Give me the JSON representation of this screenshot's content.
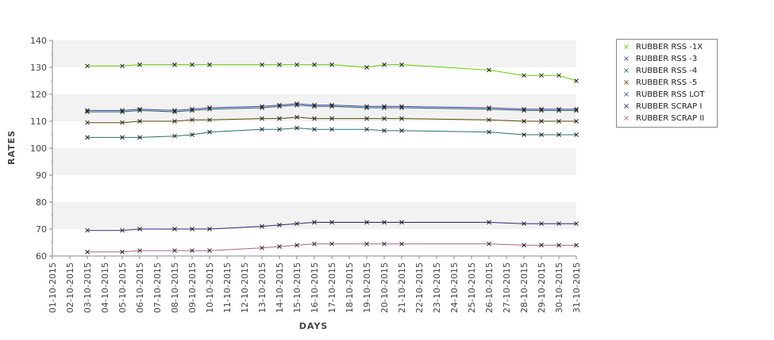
{
  "chart_data": {
    "type": "line",
    "xlabel": "DAYS",
    "ylabel": "RATES",
    "ylim": [
      60,
      140
    ],
    "yticks": [
      60,
      70,
      80,
      90,
      100,
      110,
      120,
      130,
      140
    ],
    "grid": "alternating horizontal bands",
    "legend_position": "right",
    "x": [
      "01-10-2015",
      "02-10-2015",
      "03-10-2015",
      "04-10-2015",
      "05-10-2015",
      "06-10-2015",
      "07-10-2015",
      "08-10-2015",
      "09-10-2015",
      "10-10-2015",
      "11-10-2015",
      "12-10-2015",
      "13-10-2015",
      "14-10-2015",
      "15-10-2015",
      "16-10-2015",
      "17-10-2015",
      "18-10-2015",
      "19-10-2015",
      "20-10-2015",
      "21-10-2015",
      "22-10-2015",
      "23-10-2015",
      "24-10-2015",
      "25-10-2015",
      "26-10-2015",
      "27-10-2015",
      "28-10-2015",
      "29-10-2015",
      "30-10-2015",
      "31-10-2015"
    ],
    "series": [
      {
        "name": "RUBBER RSS -1X",
        "color": "#66cc00",
        "points": [
          [
            "03-10-2015",
            130.5
          ],
          [
            "05-10-2015",
            130.5
          ],
          [
            "06-10-2015",
            131
          ],
          [
            "08-10-2015",
            131
          ],
          [
            "09-10-2015",
            131
          ],
          [
            "10-10-2015",
            131
          ],
          [
            "13-10-2015",
            131
          ],
          [
            "14-10-2015",
            131
          ],
          [
            "15-10-2015",
            131
          ],
          [
            "16-10-2015",
            131
          ],
          [
            "17-10-2015",
            131
          ],
          [
            "19-10-2015",
            130
          ],
          [
            "20-10-2015",
            131
          ],
          [
            "21-10-2015",
            131
          ],
          [
            "26-10-2015",
            129
          ],
          [
            "28-10-2015",
            127
          ],
          [
            "29-10-2015",
            127
          ],
          [
            "30-10-2015",
            127
          ],
          [
            "31-10-2015",
            125
          ]
        ]
      },
      {
        "name": "RUBBER RSS -3",
        "color": "#4444aa",
        "points": [
          [
            "03-10-2015",
            114
          ],
          [
            "05-10-2015",
            114
          ],
          [
            "06-10-2015",
            114.5
          ],
          [
            "08-10-2015",
            114
          ],
          [
            "09-10-2015",
            114.5
          ],
          [
            "10-10-2015",
            115
          ],
          [
            "13-10-2015",
            115.5
          ],
          [
            "14-10-2015",
            116
          ],
          [
            "15-10-2015",
            116.5
          ],
          [
            "16-10-2015",
            116
          ],
          [
            "17-10-2015",
            116
          ],
          [
            "19-10-2015",
            115.5
          ],
          [
            "20-10-2015",
            115.5
          ],
          [
            "21-10-2015",
            115.5
          ],
          [
            "26-10-2015",
            115
          ],
          [
            "28-10-2015",
            114.5
          ],
          [
            "29-10-2015",
            114.5
          ],
          [
            "30-10-2015",
            114.5
          ],
          [
            "31-10-2015",
            114.5
          ]
        ]
      },
      {
        "name": "RUBBER RSS -4",
        "color": "#226666",
        "points": [
          [
            "03-10-2015",
            113.5
          ],
          [
            "05-10-2015",
            113.5
          ],
          [
            "06-10-2015",
            114
          ],
          [
            "08-10-2015",
            113.5
          ],
          [
            "09-10-2015",
            114
          ],
          [
            "10-10-2015",
            114.5
          ],
          [
            "13-10-2015",
            115
          ],
          [
            "14-10-2015",
            115.5
          ],
          [
            "15-10-2015",
            116
          ],
          [
            "16-10-2015",
            115.5
          ],
          [
            "17-10-2015",
            115.5
          ],
          [
            "19-10-2015",
            115
          ],
          [
            "20-10-2015",
            115
          ],
          [
            "21-10-2015",
            115
          ],
          [
            "26-10-2015",
            114.5
          ],
          [
            "28-10-2015",
            114
          ],
          [
            "29-10-2015",
            114
          ],
          [
            "30-10-2015",
            114
          ],
          [
            "31-10-2015",
            114
          ]
        ]
      },
      {
        "name": "RUBBER RSS -5",
        "color": "#664400",
        "points": [
          [
            "03-10-2015",
            109.5
          ],
          [
            "05-10-2015",
            109.5
          ],
          [
            "06-10-2015",
            110
          ],
          [
            "08-10-2015",
            110
          ],
          [
            "09-10-2015",
            110.5
          ],
          [
            "10-10-2015",
            110.5
          ],
          [
            "13-10-2015",
            111
          ],
          [
            "14-10-2015",
            111
          ],
          [
            "15-10-2015",
            111.5
          ],
          [
            "16-10-2015",
            111
          ],
          [
            "17-10-2015",
            111
          ],
          [
            "19-10-2015",
            111
          ],
          [
            "20-10-2015",
            111
          ],
          [
            "21-10-2015",
            111
          ],
          [
            "26-10-2015",
            110.5
          ],
          [
            "28-10-2015",
            110
          ],
          [
            "29-10-2015",
            110
          ],
          [
            "30-10-2015",
            110
          ],
          [
            "31-10-2015",
            110
          ]
        ]
      },
      {
        "name": "RUBBER RSS LOT",
        "color": "#2a6b7a",
        "points": [
          [
            "03-10-2015",
            104
          ],
          [
            "05-10-2015",
            104
          ],
          [
            "06-10-2015",
            104
          ],
          [
            "08-10-2015",
            104.5
          ],
          [
            "09-10-2015",
            105
          ],
          [
            "10-10-2015",
            106
          ],
          [
            "13-10-2015",
            107
          ],
          [
            "14-10-2015",
            107
          ],
          [
            "15-10-2015",
            107.5
          ],
          [
            "16-10-2015",
            107
          ],
          [
            "17-10-2015",
            107
          ],
          [
            "19-10-2015",
            107
          ],
          [
            "20-10-2015",
            106.5
          ],
          [
            "21-10-2015",
            106.5
          ],
          [
            "26-10-2015",
            106
          ],
          [
            "28-10-2015",
            105
          ],
          [
            "29-10-2015",
            105
          ],
          [
            "30-10-2015",
            105
          ],
          [
            "31-10-2015",
            105
          ]
        ]
      },
      {
        "name": "RUBBER SCRAP I",
        "color": "#332277",
        "points": [
          [
            "03-10-2015",
            69.5
          ],
          [
            "05-10-2015",
            69.5
          ],
          [
            "06-10-2015",
            70
          ],
          [
            "08-10-2015",
            70
          ],
          [
            "09-10-2015",
            70
          ],
          [
            "10-10-2015",
            70
          ],
          [
            "13-10-2015",
            71
          ],
          [
            "14-10-2015",
            71.5
          ],
          [
            "15-10-2015",
            72
          ],
          [
            "16-10-2015",
            72.5
          ],
          [
            "17-10-2015",
            72.5
          ],
          [
            "19-10-2015",
            72.5
          ],
          [
            "20-10-2015",
            72.5
          ],
          [
            "21-10-2015",
            72.5
          ],
          [
            "26-10-2015",
            72.5
          ],
          [
            "28-10-2015",
            72
          ],
          [
            "29-10-2015",
            72
          ],
          [
            "30-10-2015",
            72
          ],
          [
            "31-10-2015",
            72
          ]
        ]
      },
      {
        "name": "RUBBER SCRAP II",
        "color": "#aa6688",
        "points": [
          [
            "03-10-2015",
            61.5
          ],
          [
            "05-10-2015",
            61.5
          ],
          [
            "06-10-2015",
            62
          ],
          [
            "08-10-2015",
            62
          ],
          [
            "09-10-2015",
            62
          ],
          [
            "10-10-2015",
            62
          ],
          [
            "13-10-2015",
            63
          ],
          [
            "14-10-2015",
            63.5
          ],
          [
            "15-10-2015",
            64
          ],
          [
            "16-10-2015",
            64.5
          ],
          [
            "17-10-2015",
            64.5
          ],
          [
            "19-10-2015",
            64.5
          ],
          [
            "20-10-2015",
            64.5
          ],
          [
            "21-10-2015",
            64.5
          ],
          [
            "26-10-2015",
            64.5
          ],
          [
            "28-10-2015",
            64
          ],
          [
            "29-10-2015",
            64
          ],
          [
            "30-10-2015",
            64
          ],
          [
            "31-10-2015",
            64
          ]
        ]
      }
    ]
  }
}
